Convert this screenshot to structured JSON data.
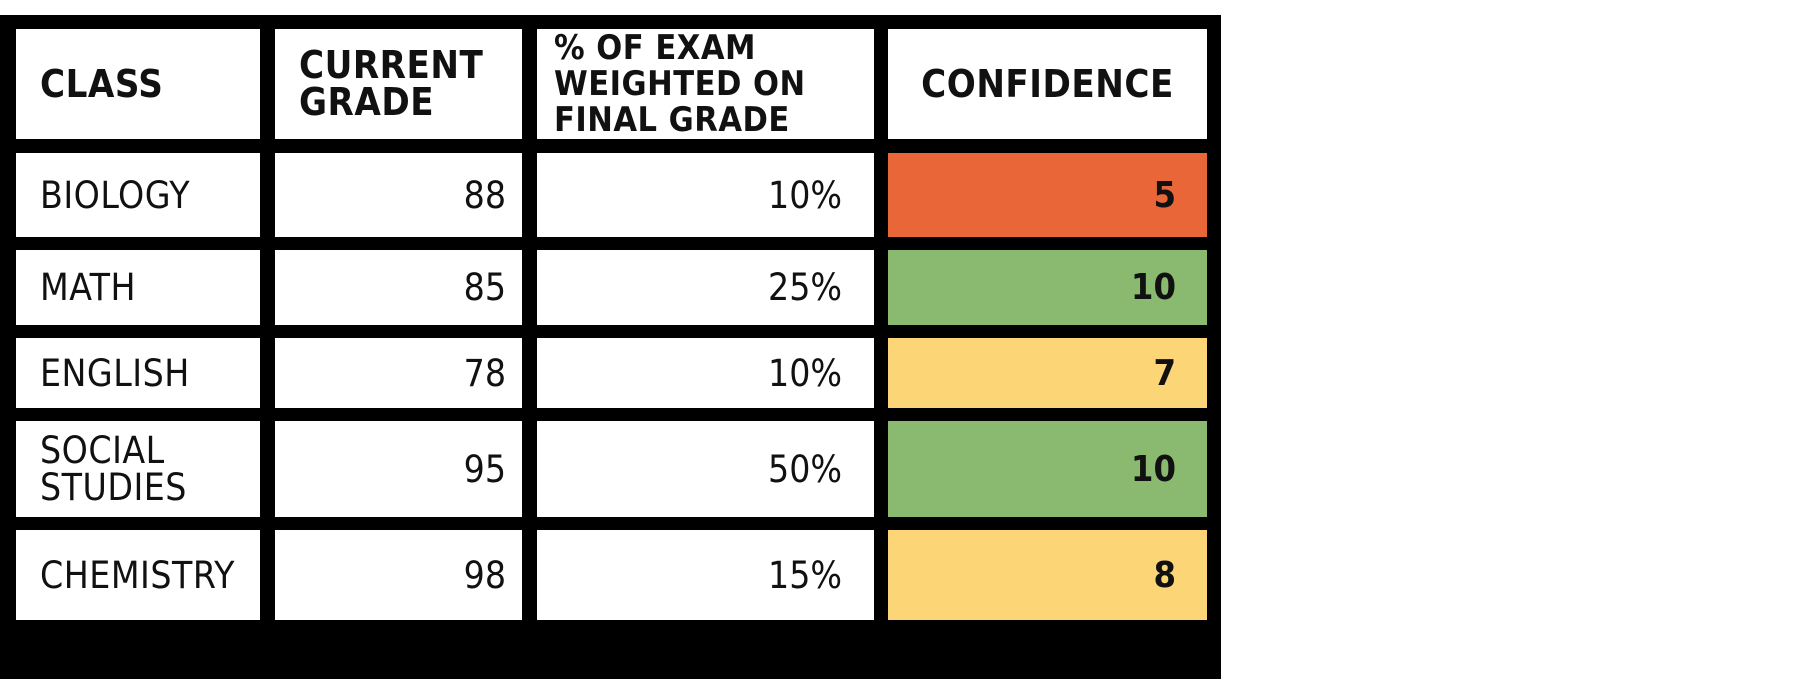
{
  "colors": {
    "border": "#000000",
    "low": "#E86637",
    "high": "#8AB970",
    "mid": "#FCD577"
  },
  "headers": {
    "class": "CLASS",
    "current_grade": "CURRENT\nGRADE",
    "exam_weight": "% OF EXAM\nWEIGHTED ON\nFINAL GRADE",
    "confidence": "CONFIDENCE"
  },
  "rows": [
    {
      "class": "BIOLOGY",
      "grade": "88",
      "weight": "10%",
      "confidence": "5",
      "confidence_level": "low"
    },
    {
      "class": "MATH",
      "grade": "85",
      "weight": "25%",
      "confidence": "10",
      "confidence_level": "high"
    },
    {
      "class": "ENGLISH",
      "grade": "78",
      "weight": "10%",
      "confidence": "7",
      "confidence_level": "mid"
    },
    {
      "class": "SOCIAL\nSTUDIES",
      "grade": "95",
      "weight": "50%",
      "confidence": "10",
      "confidence_level": "high"
    },
    {
      "class": "CHEMISTRY",
      "grade": "98",
      "weight": "15%",
      "confidence": "8",
      "confidence_level": "mid"
    }
  ]
}
